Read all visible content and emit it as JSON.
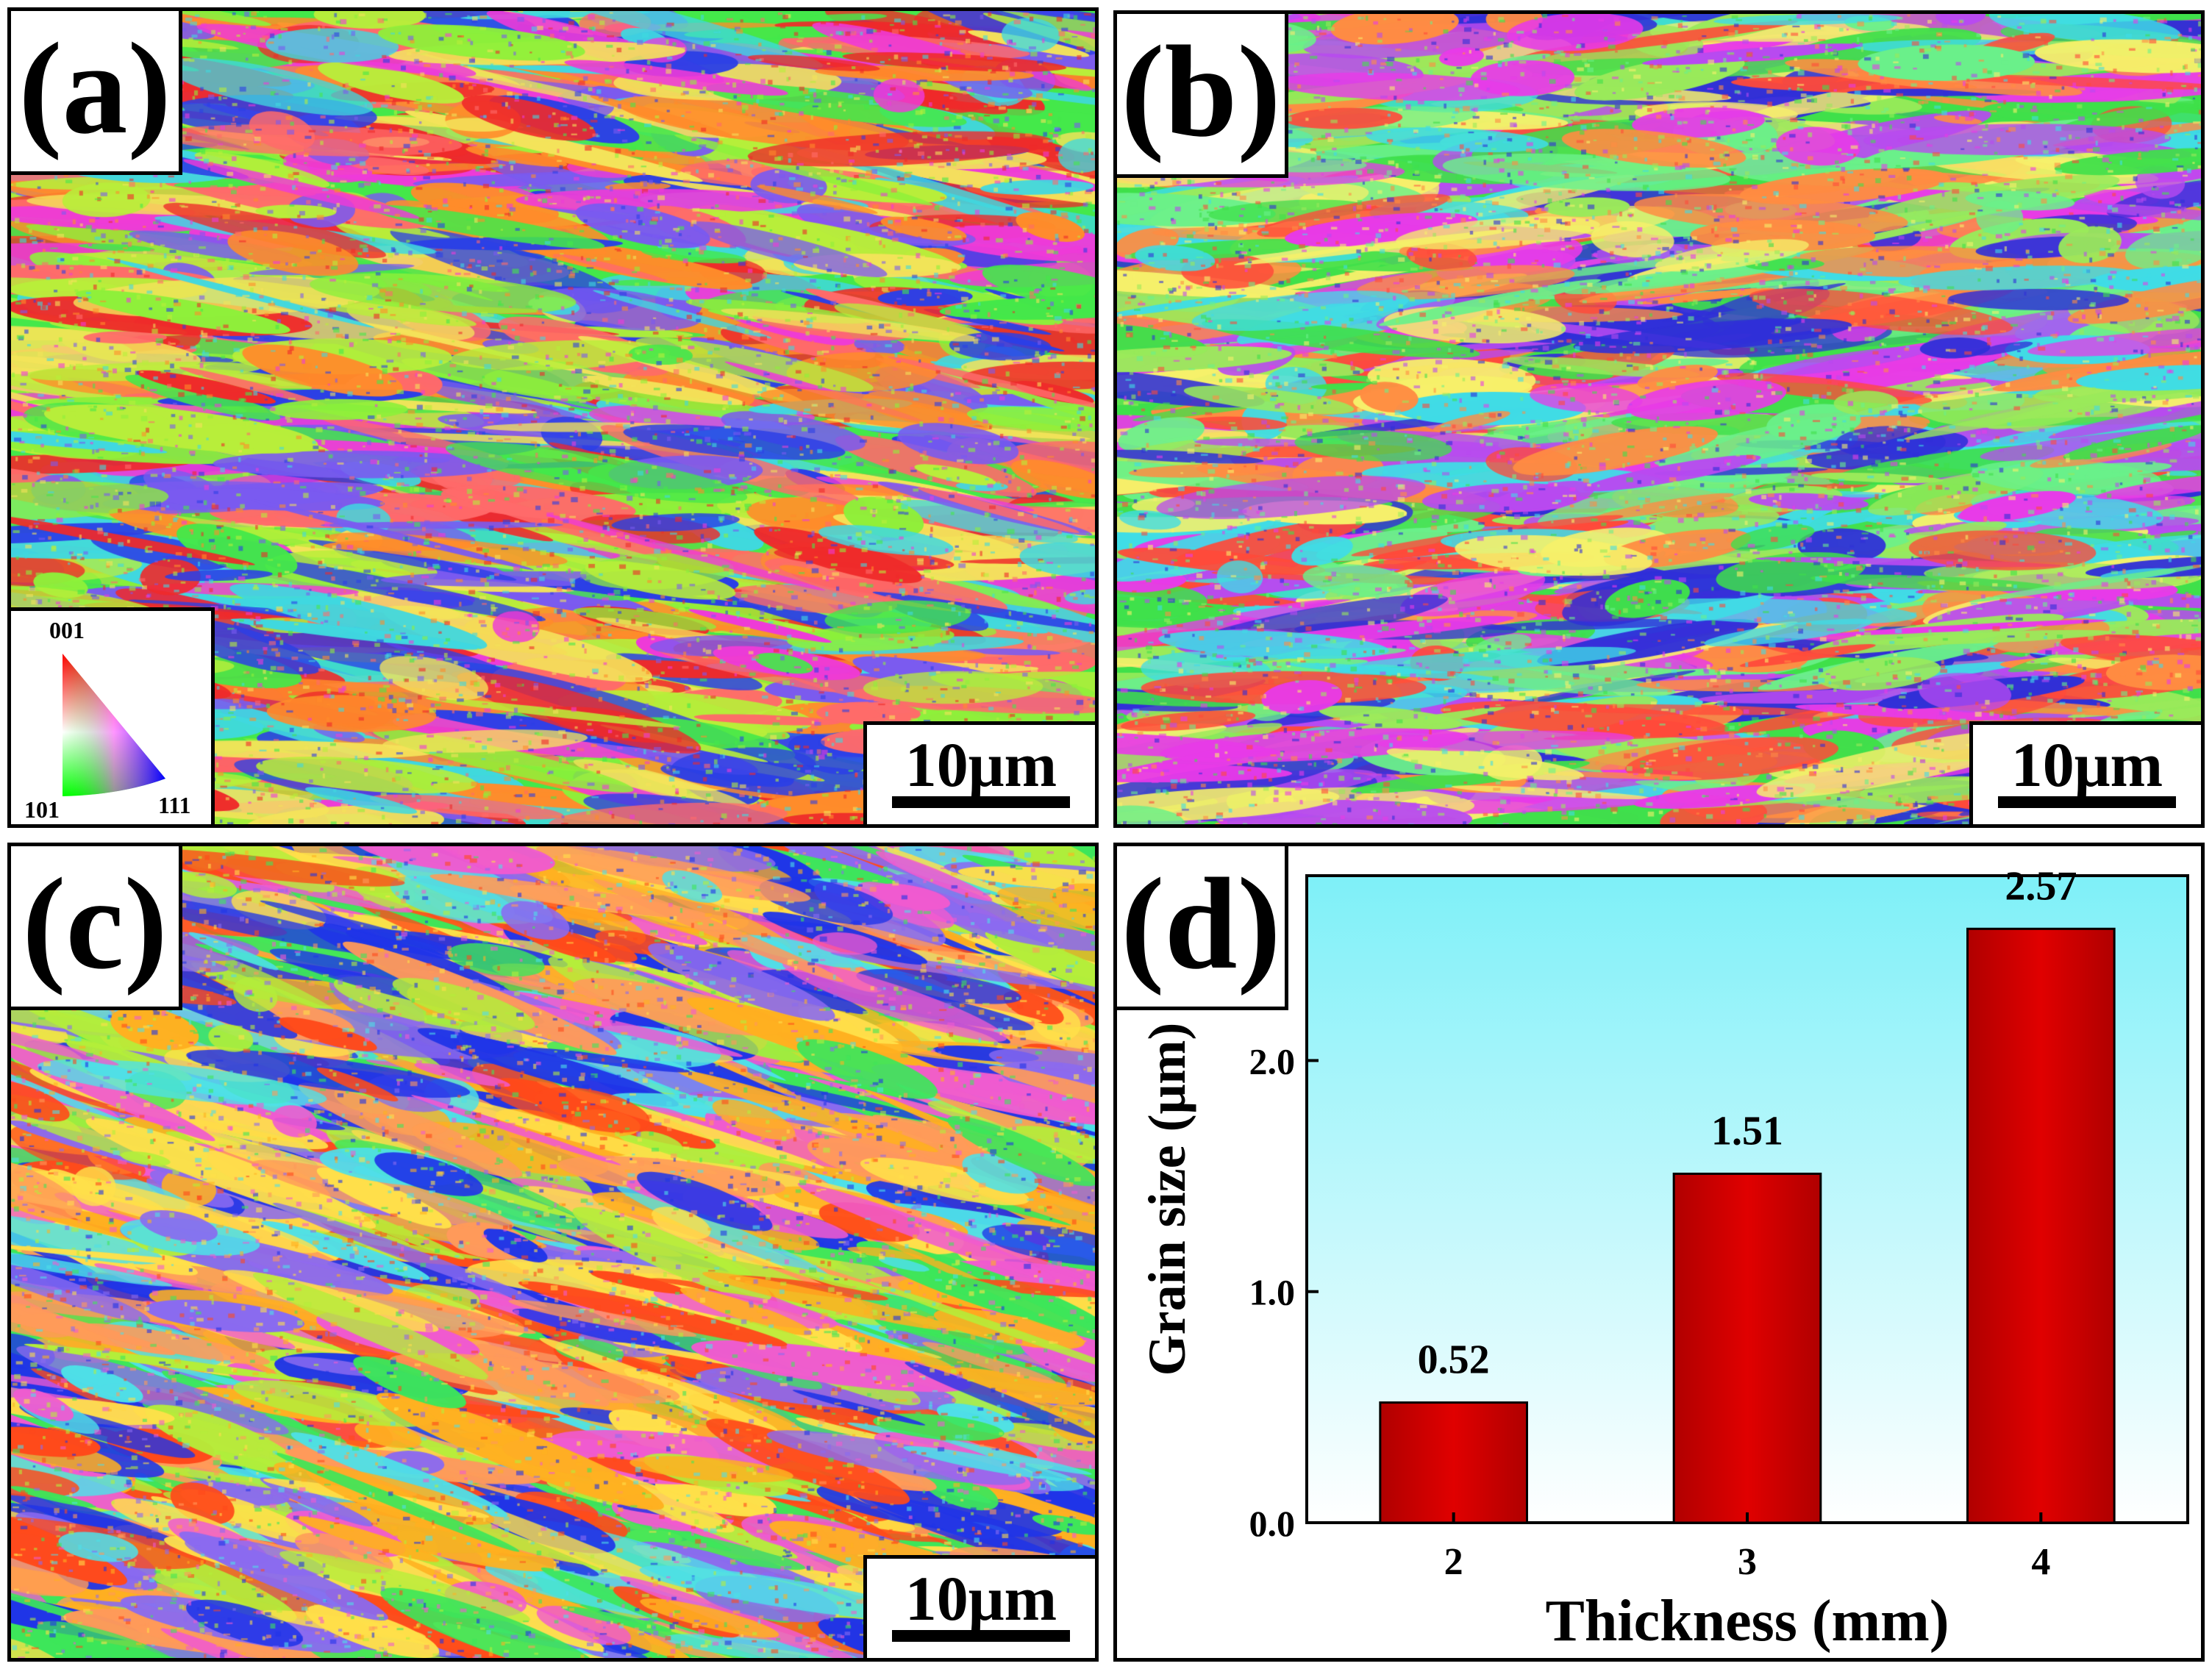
{
  "panels": {
    "a": {
      "label": "(a)",
      "scale_bar": "10μm"
    },
    "b": {
      "label": "(b)",
      "scale_bar": "10μm"
    },
    "c": {
      "label": "(c)",
      "scale_bar": "10μm"
    },
    "d": {
      "label": "(d)"
    }
  },
  "ipf_key": {
    "top": "001",
    "bottom_left": "101",
    "bottom_right": "111"
  },
  "ebsd_palettes": {
    "a": [
      "#44e84a",
      "#8ef03a",
      "#ef2a2a",
      "#2b3fe6",
      "#ff8c2a",
      "#ee3ad8",
      "#3fd8e0",
      "#b8ee3a",
      "#f4e35a",
      "#ff6a6a",
      "#7a5af0"
    ],
    "b": [
      "#3fe04a",
      "#e83ae8",
      "#ff8c42",
      "#2f2fd8",
      "#9aea5a",
      "#3fdce6",
      "#ff4a3a",
      "#f6f06a",
      "#b84af0",
      "#6af08a"
    ],
    "c": [
      "#3de65a",
      "#ffb020",
      "#ff4a1a",
      "#1f34e8",
      "#4ee0e8",
      "#ff9a5a",
      "#f05ad0",
      "#b4ee3a",
      "#ffe04a",
      "#8a6af0"
    ]
  },
  "chart_data": {
    "type": "bar",
    "categories": [
      "2",
      "3",
      "4"
    ],
    "values": [
      0.52,
      1.51,
      2.57
    ],
    "data_labels": [
      "0.52",
      "1.51",
      "2.57"
    ],
    "xlabel": "Thickness (mm)",
    "ylabel": "Grain size (μm)",
    "ylim": [
      0,
      2.8
    ],
    "yticks": [
      "0.0",
      "1.0",
      "2.0"
    ],
    "ytick_values": [
      0,
      1,
      2
    ],
    "grid": false,
    "bar_color": "#e00000",
    "background_top": "#7ef0f8",
    "background_bottom": "#ffffff"
  }
}
